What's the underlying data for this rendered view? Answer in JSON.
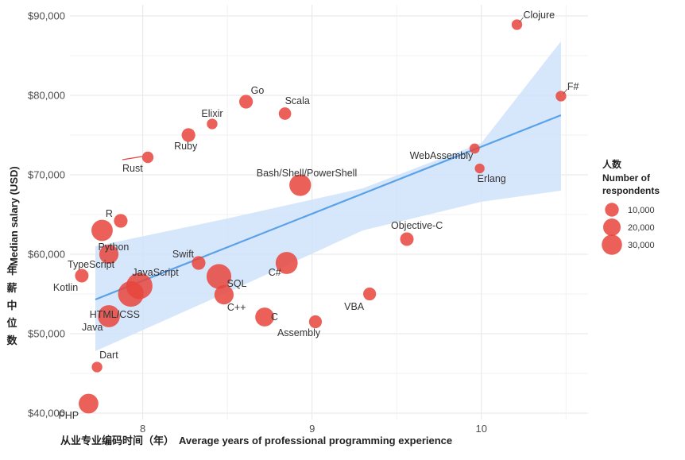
{
  "chart_data": {
    "type": "scatter",
    "title": "",
    "xlabel_cn": "从业专业编码时间（年）",
    "xlabel": "Average years of professional programming experience",
    "ylabel": "Median salary (USD)",
    "ylabel_cn": "年薪中位数",
    "xlim": [
      7.57,
      10.63
    ],
    "ylim": [
      39200,
      91400
    ],
    "x_ticks": [
      8,
      9,
      10
    ],
    "x_tick_labels": [
      "8",
      "9",
      "10"
    ],
    "y_ticks": [
      40000,
      50000,
      60000,
      70000,
      80000,
      90000
    ],
    "y_tick_labels": [
      "$40,000",
      "$50,000",
      "$60,000",
      "$70,000",
      "$80,000",
      "$90,000"
    ],
    "grid": true,
    "point_color": "#e8453c",
    "trend": {
      "color": "#5aa2e8",
      "band_color": "#cfe2fa",
      "line": [
        [
          7.72,
          54300
        ],
        [
          10.47,
          77500
        ]
      ],
      "band_upper": [
        [
          7.72,
          61000
        ],
        [
          8.5,
          64500
        ],
        [
          9.3,
          68300
        ],
        [
          10.0,
          74000
        ],
        [
          10.47,
          86800
        ]
      ],
      "band_lower": [
        [
          7.72,
          47800
        ],
        [
          8.5,
          55200
        ],
        [
          9.3,
          63000
        ],
        [
          10.0,
          66600
        ],
        [
          10.47,
          68000
        ]
      ]
    },
    "points": [
      {
        "name": "Clojure",
        "x": 10.21,
        "y": 88900,
        "size": 1800
      },
      {
        "name": "F#",
        "x": 10.47,
        "y": 79900,
        "size": 1800
      },
      {
        "name": "Go",
        "x": 8.61,
        "y": 79200,
        "size": 5000
      },
      {
        "name": "Scala",
        "x": 8.84,
        "y": 77700,
        "size": 3500
      },
      {
        "name": "Elixir",
        "x": 8.41,
        "y": 76400,
        "size": 1800
      },
      {
        "name": "Ruby",
        "x": 8.27,
        "y": 75000,
        "size": 5000
      },
      {
        "name": "Rust",
        "x": 8.03,
        "y": 72200,
        "size": 2500
      },
      {
        "name": "WebAssembly",
        "x": 9.96,
        "y": 73300,
        "size": 1500
      },
      {
        "name": "Erlang",
        "x": 9.99,
        "y": 70800,
        "size": 1200
      },
      {
        "name": "Bash/Shell/PowerShell",
        "x": 8.93,
        "y": 68700,
        "size": 21000
      },
      {
        "name": "R",
        "x": 7.87,
        "y": 64200,
        "size": 5000
      },
      {
        "name": "Python",
        "x": 7.76,
        "y": 63000,
        "size": 20000
      },
      {
        "name": "Objective-C",
        "x": 9.56,
        "y": 61900,
        "size": 4800
      },
      {
        "name": "TypeScript",
        "x": 7.8,
        "y": 60000,
        "size": 15000
      },
      {
        "name": "Swift",
        "x": 8.33,
        "y": 58900,
        "size": 5000
      },
      {
        "name": "C#",
        "x": 8.85,
        "y": 58900,
        "size": 22000
      },
      {
        "name": "Kotlin",
        "x": 7.64,
        "y": 57300,
        "size": 4800
      },
      {
        "name": "SQL",
        "x": 8.45,
        "y": 57200,
        "size": 30000
      },
      {
        "name": "JavaScript",
        "x": 7.98,
        "y": 56000,
        "size": 35000
      },
      {
        "name": "HTML/CSS",
        "x": 7.93,
        "y": 55000,
        "size": 33000
      },
      {
        "name": "C++",
        "x": 8.48,
        "y": 54900,
        "size": 15000
      },
      {
        "name": "VBA",
        "x": 9.34,
        "y": 55000,
        "size": 4000
      },
      {
        "name": "Java",
        "x": 7.8,
        "y": 52200,
        "size": 22000
      },
      {
        "name": "C",
        "x": 8.72,
        "y": 52100,
        "size": 14000
      },
      {
        "name": "Assembly",
        "x": 9.02,
        "y": 51500,
        "size": 4000
      },
      {
        "name": "Dart",
        "x": 7.73,
        "y": 45800,
        "size": 1800
      },
      {
        "name": "PHP",
        "x": 7.68,
        "y": 41200,
        "size": 16000
      }
    ],
    "legend": {
      "title_cn": "人数",
      "title_line1": "Number of",
      "title_line2": "respondents",
      "items": [
        {
          "label": "10,000",
          "size": 10000
        },
        {
          "label": "20,000",
          "size": 20000
        },
        {
          "label": "30,000",
          "size": 30000
        }
      ]
    }
  }
}
